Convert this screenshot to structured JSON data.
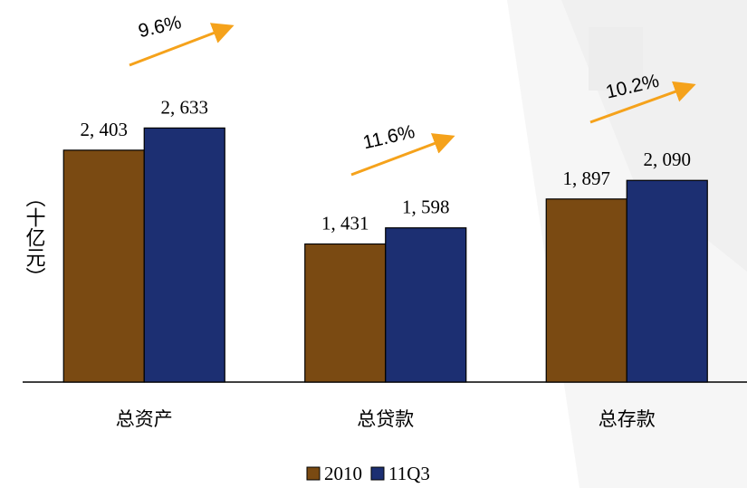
{
  "chart_data": {
    "type": "bar",
    "y_label": "（十亿元）",
    "categories": [
      "总资产",
      "总贷款",
      "总存款"
    ],
    "series": [
      {
        "name": "2010",
        "color": "#7a4a12",
        "values": [
          2403,
          1431,
          1897
        ],
        "value_labels": [
          "2, 403",
          "1, 431",
          "1, 897"
        ]
      },
      {
        "name": "11Q3",
        "color": "#1c2f72",
        "values": [
          2633,
          1598,
          2090
        ],
        "value_labels": [
          "2, 633",
          "1, 598",
          "2, 090"
        ]
      }
    ],
    "ylim": [
      0,
      3950
    ],
    "annotations": [
      "9.6%",
      "11.6%",
      "10.2%"
    ],
    "legend": "bottom"
  }
}
